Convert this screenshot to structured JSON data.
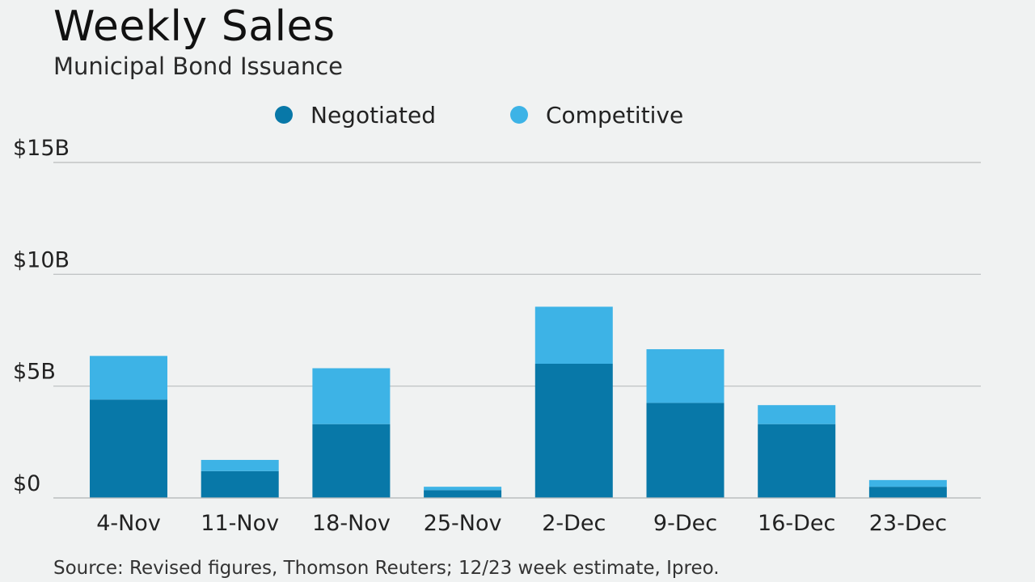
{
  "title": "Weekly Sales",
  "subtitle": "Municipal Bond Issuance",
  "source": "Source: Revised figures, Thomson Reuters; 12/23 week estimate, Ipreo.",
  "colors": {
    "negotiated": "#0878a8",
    "competitive": "#3db3e6",
    "grid": "#b9bcbd",
    "text": "#222222"
  },
  "chart_data": {
    "type": "bar",
    "stacked": true,
    "title": "Weekly Sales",
    "subtitle": "Municipal Bond Issuance",
    "categories": [
      "4-Nov",
      "11-Nov",
      "18-Nov",
      "25-Nov",
      "2-Dec",
      "9-Dec",
      "16-Dec",
      "23-Dec"
    ],
    "series": [
      {
        "name": "Negotiated",
        "values": [
          4.4,
          1.2,
          3.3,
          0.35,
          6.0,
          4.25,
          3.3,
          0.5
        ]
      },
      {
        "name": "Competitive",
        "values": [
          1.95,
          0.5,
          2.5,
          0.15,
          2.55,
          2.4,
          0.85,
          0.3
        ]
      }
    ],
    "ylim": [
      0,
      15
    ],
    "yticks": [
      0,
      5,
      10,
      15
    ],
    "ytick_labels": [
      "$0",
      "$5B",
      "$10B",
      "$15B"
    ],
    "xlabel": "",
    "ylabel": "",
    "grid": true,
    "legend_position": "top"
  }
}
